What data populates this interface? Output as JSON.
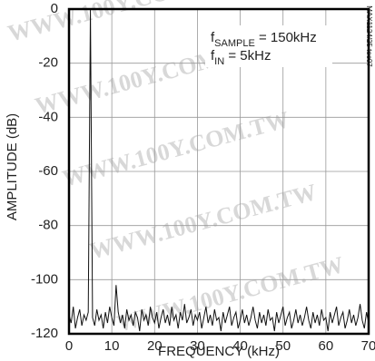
{
  "chart_data": {
    "type": "line",
    "ylabel": "AMPLITUDE (dB)",
    "xlabel": "FREQUENCY (kHz)",
    "annotation": {
      "f": "f",
      "sample": "SAMPLE",
      "sample_rest": " = 150kHz",
      "in": "IN",
      "in_rest": " = 5kHz"
    },
    "side_label": "MAX1124/25 toc07",
    "watermark": "WWW.100Y.COM.TW",
    "xlim": [
      0,
      70
    ],
    "xticks": [
      0,
      10,
      20,
      30,
      40,
      50,
      60,
      70
    ],
    "ylim": [
      -120,
      0
    ],
    "yticks": [
      0,
      -20,
      -40,
      -60,
      -80,
      -100,
      -120
    ],
    "grid": true,
    "x": [
      0,
      0.5,
      1,
      1.5,
      2,
      2.5,
      3,
      3.5,
      4,
      4.5,
      5,
      5.5,
      6,
      6.5,
      7,
      7.5,
      8,
      8.5,
      9,
      9.5,
      10,
      10.5,
      11,
      11.5,
      12,
      12.5,
      13,
      13.5,
      14,
      14.5,
      15,
      15.5,
      16,
      16.5,
      17,
      17.5,
      18,
      18.5,
      19,
      19.5,
      20,
      20.5,
      21,
      21.5,
      22,
      22.5,
      23,
      23.5,
      24,
      24.5,
      25,
      25.5,
      26,
      26.5,
      27,
      27.5,
      28,
      28.5,
      29,
      29.5,
      30,
      30.5,
      31,
      31.5,
      32,
      32.5,
      33,
      33.5,
      34,
      34.5,
      35,
      35.5,
      36,
      36.5,
      37,
      37.5,
      38,
      38.5,
      39,
      39.5,
      40,
      40.5,
      41,
      41.5,
      42,
      42.5,
      43,
      43.5,
      44,
      44.5,
      45,
      45.5,
      46,
      46.5,
      47,
      47.5,
      48,
      48.5,
      49,
      49.5,
      50,
      50.5,
      51,
      51.5,
      52,
      52.5,
      53,
      53.5,
      54,
      54.5,
      55,
      55.5,
      56,
      56.5,
      57,
      57.5,
      58,
      58.5,
      59,
      59.5,
      60,
      60.5,
      61,
      61.5,
      62,
      62.5,
      63,
      63.5,
      64,
      64.5,
      65,
      65.5,
      66,
      66.5,
      67,
      67.5,
      68,
      68.5,
      69,
      69.5,
      70
    ],
    "series": [
      {
        "color": "#111111",
        "values": [
          -113,
          -116,
          -110,
          -118,
          -114,
          -111,
          -117,
          -113,
          -115,
          -112,
          0,
          -114,
          -117,
          -111,
          -115,
          -113,
          -118,
          -112,
          -116,
          -110,
          -114,
          -117,
          -102,
          -112,
          -116,
          -113,
          -118,
          -111,
          -115,
          -113,
          -117,
          -112,
          -114,
          -119,
          -111,
          -115,
          -113,
          -117,
          -110,
          -114,
          -116,
          -112,
          -118,
          -114,
          -111,
          -116,
          -113,
          -117,
          -110,
          -115,
          -113,
          -118,
          -112,
          -115,
          -109,
          -116,
          -114,
          -111,
          -117,
          -113,
          -115,
          -112,
          -118,
          -114,
          -110,
          -116,
          -113,
          -117,
          -111,
          -115,
          -114,
          -119,
          -112,
          -116,
          -113,
          -110,
          -117,
          -114,
          -112,
          -118,
          -115,
          -111,
          -116,
          -113,
          -117,
          -114,
          -110,
          -115,
          -118,
          -112,
          -116,
          -113,
          -117,
          -111,
          -115,
          -114,
          -119,
          -112,
          -116,
          -113,
          -110,
          -117,
          -114,
          -112,
          -118,
          -115,
          -111,
          -116,
          -113,
          -117,
          -114,
          -110,
          -115,
          -118,
          -112,
          -116,
          -113,
          -117,
          -111,
          -115,
          -114,
          -119,
          -112,
          -116,
          -113,
          -110,
          -117,
          -114,
          -112,
          -118,
          -115,
          -111,
          -116,
          -113,
          -117,
          -114,
          -109,
          -115,
          -118,
          -112,
          -116
        ]
      }
    ]
  }
}
